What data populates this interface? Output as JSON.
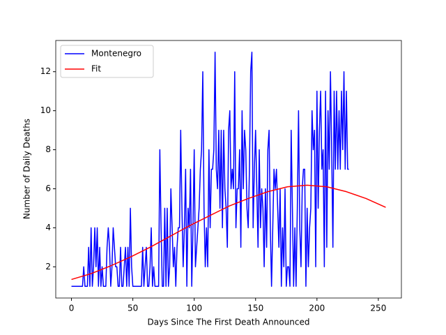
{
  "chart_data": {
    "type": "line",
    "xlabel": "Days Since The First Death Announced",
    "ylabel": "Number of Daily Deaths",
    "xlim": [
      -12.8,
      268.8
    ],
    "ylim": [
      0.4,
      13.6
    ],
    "xticks": [
      0,
      50,
      100,
      150,
      200,
      250
    ],
    "yticks": [
      2,
      4,
      6,
      8,
      10,
      12
    ],
    "legend": "upper left",
    "series": [
      {
        "name": "Montenegro",
        "color": "#0000ff",
        "x": [
          0,
          1,
          2,
          3,
          4,
          5,
          6,
          7,
          8,
          9,
          10,
          11,
          12,
          13,
          14,
          15,
          16,
          17,
          18,
          19,
          20,
          21,
          22,
          23,
          24,
          25,
          26,
          27,
          28,
          29,
          30,
          31,
          32,
          33,
          34,
          35,
          36,
          37,
          38,
          39,
          40,
          41,
          42,
          43,
          44,
          45,
          46,
          47,
          48,
          49,
          50,
          51,
          52,
          53,
          54,
          55,
          56,
          57,
          58,
          59,
          60,
          61,
          62,
          63,
          64,
          65,
          66,
          67,
          68,
          69,
          70,
          71,
          72,
          73,
          74,
          75,
          76,
          77,
          78,
          79,
          80,
          81,
          82,
          83,
          84,
          85,
          86,
          87,
          88,
          89,
          90,
          91,
          92,
          93,
          94,
          95,
          96,
          97,
          98,
          99,
          100,
          101,
          102,
          103,
          104,
          105,
          106,
          107,
          108,
          109,
          110,
          111,
          112,
          113,
          114,
          115,
          116,
          117,
          118,
          119,
          120,
          121,
          122,
          123,
          124,
          125,
          126,
          127,
          128,
          129,
          130,
          131,
          132,
          133,
          134,
          135,
          136,
          137,
          138,
          139,
          140,
          141,
          142,
          143,
          144,
          145,
          146,
          147,
          148,
          149,
          150,
          151,
          152,
          153,
          154,
          155,
          156,
          157,
          158,
          159,
          160,
          161,
          162,
          163,
          164,
          165,
          166,
          167,
          168,
          169,
          170,
          171,
          172,
          173,
          174,
          175,
          176,
          177,
          178,
          179,
          180,
          181,
          182,
          183,
          184,
          185,
          186,
          187,
          188,
          189,
          190,
          191,
          192,
          193,
          194,
          195,
          196,
          197,
          198,
          199,
          200,
          201,
          202,
          203,
          204,
          205,
          206,
          207,
          208,
          209,
          210,
          211,
          212,
          213,
          214,
          215,
          216,
          217,
          218,
          219,
          220,
          221,
          222,
          223,
          224,
          225,
          226
        ],
        "values": [
          1,
          1,
          1,
          1,
          1,
          1,
          1,
          1,
          1,
          1,
          2,
          1,
          1,
          1,
          3,
          1,
          4,
          1,
          2,
          4,
          2,
          4,
          1,
          3,
          1,
          2,
          1,
          1,
          1,
          3,
          4,
          3,
          1,
          2,
          4,
          3,
          2,
          2,
          1,
          1,
          3,
          1,
          1,
          2,
          3,
          1,
          3,
          1,
          5,
          2,
          1,
          1,
          1,
          1,
          1,
          1,
          1,
          1,
          3,
          1,
          2,
          3,
          1,
          1,
          2,
          4,
          1,
          2,
          1,
          1,
          1,
          1,
          8,
          4,
          1,
          1,
          5,
          1,
          5,
          1,
          2,
          6,
          4,
          2,
          3,
          1,
          3,
          4,
          4,
          9,
          5,
          2,
          4,
          7,
          1,
          5,
          4,
          7,
          1,
          4,
          8,
          2,
          3,
          4,
          5,
          7,
          8,
          12,
          5,
          2,
          4,
          2,
          8,
          4,
          7,
          7,
          8,
          13,
          7,
          6,
          9,
          5,
          9,
          4,
          9,
          6,
          5,
          3,
          9,
          10,
          6,
          7,
          6,
          12,
          4,
          6,
          6,
          8,
          3,
          10,
          6,
          9,
          8,
          5,
          4,
          7,
          12,
          13,
          4,
          7,
          9,
          6,
          3,
          8,
          4,
          6,
          5,
          2,
          6,
          3,
          8,
          9,
          4,
          1,
          4,
          7,
          6,
          7,
          5,
          3,
          6,
          1,
          4,
          2,
          6,
          1,
          2,
          2,
          1,
          9,
          5,
          1,
          4,
          1,
          5,
          10,
          4,
          2,
          6,
          7,
          7,
          1,
          5,
          2,
          4,
          5,
          10,
          8,
          9,
          2,
          11,
          5,
          9,
          11,
          7,
          8,
          2,
          11,
          3,
          10,
          7,
          12,
          8,
          3,
          11,
          7,
          11,
          7,
          10,
          7,
          11,
          8,
          12,
          7,
          11,
          7,
          7
        ]
      },
      {
        "name": "Fit",
        "color": "#ff0000",
        "x": [
          0,
          16,
          32,
          48,
          64,
          80,
          96,
          112,
          128,
          144,
          160,
          176,
          192,
          208,
          224,
          240,
          256
        ],
        "values": [
          1.35,
          1.65,
          2.05,
          2.5,
          3.0,
          3.55,
          4.1,
          4.6,
          5.1,
          5.5,
          5.85,
          6.1,
          6.18,
          6.1,
          5.85,
          5.5,
          5.05
        ]
      }
    ]
  }
}
